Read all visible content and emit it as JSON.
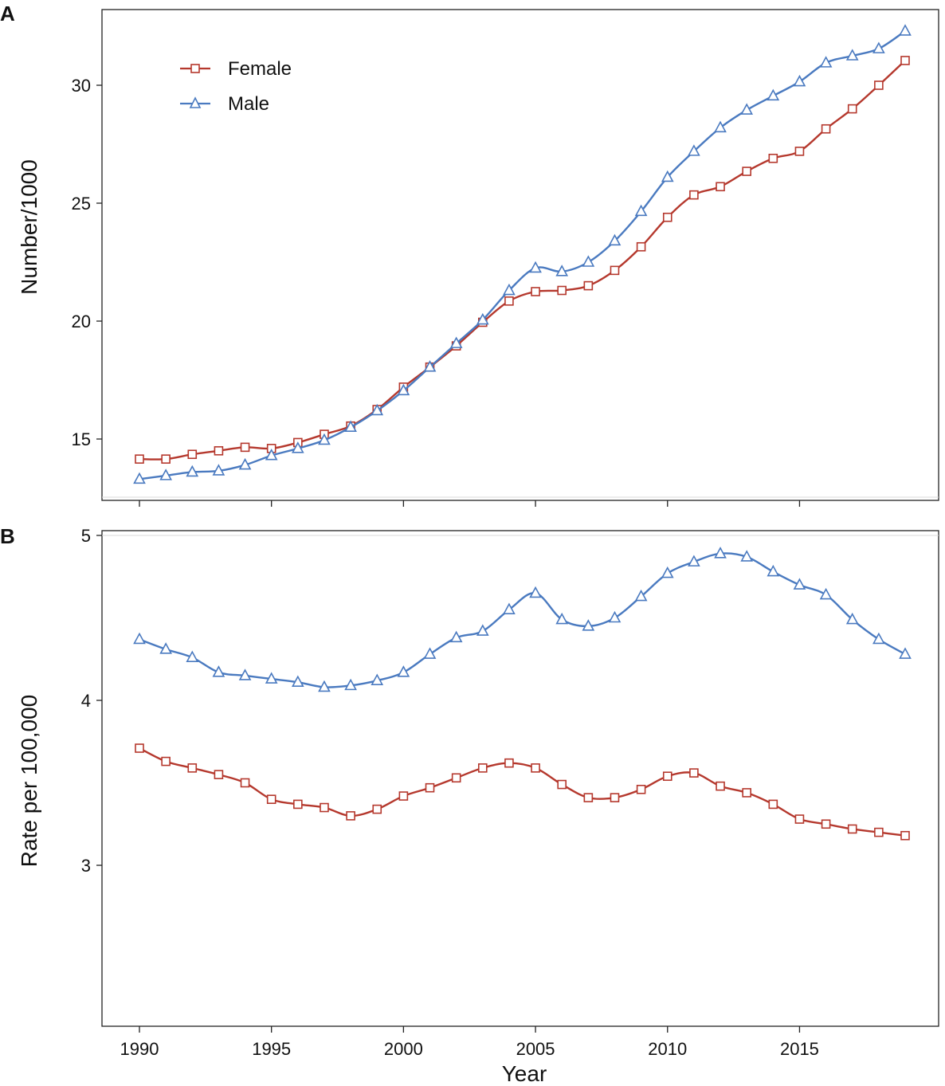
{
  "colors": {
    "female": "#b5382d",
    "male": "#4a7ac0",
    "frame": "#222222"
  },
  "chart_data": [
    {
      "type": "line",
      "panel_label": "A",
      "ylabel": "Number/1000",
      "xlabel": "",
      "xlim": [
        1990,
        2019
      ],
      "ylim": [
        12.5,
        32.8
      ],
      "yticks": [
        15,
        20,
        25,
        30
      ],
      "ytick_labels": [
        "15",
        "20",
        "25",
        "30"
      ],
      "legend": {
        "position": "top-left"
      },
      "x": [
        1990,
        1991,
        1992,
        1993,
        1994,
        1995,
        1996,
        1997,
        1998,
        1999,
        2000,
        2001,
        2002,
        2003,
        2004,
        2005,
        2006,
        2007,
        2008,
        2009,
        2010,
        2011,
        2012,
        2013,
        2014,
        2015,
        2016,
        2017,
        2018,
        2019
      ],
      "series": [
        {
          "name": "Female",
          "marker": "square",
          "color_key": "female",
          "values": [
            14.15,
            14.15,
            14.35,
            14.5,
            14.65,
            14.6,
            14.85,
            15.2,
            15.55,
            16.25,
            17.2,
            18.05,
            18.95,
            19.95,
            20.85,
            21.25,
            21.3,
            21.5,
            22.15,
            23.15,
            24.4,
            25.35,
            25.7,
            26.35,
            26.9,
            27.2,
            28.15,
            29.0,
            30.0,
            31.05
          ]
        },
        {
          "name": "Male",
          "marker": "triangle",
          "color_key": "male",
          "values": [
            13.3,
            13.45,
            13.6,
            13.65,
            13.9,
            14.3,
            14.6,
            14.95,
            15.5,
            16.2,
            17.05,
            18.05,
            19.05,
            20.05,
            21.3,
            22.25,
            22.1,
            22.5,
            23.4,
            24.65,
            26.1,
            27.2,
            28.2,
            28.95,
            29.55,
            30.15,
            30.95,
            31.25,
            31.55,
            32.3
          ]
        }
      ]
    },
    {
      "type": "line",
      "panel_label": "B",
      "ylabel": "Rate per 100,000",
      "xlabel": "Year",
      "xlim": [
        1990,
        2019
      ],
      "ylim": [
        2.0,
        5.0
      ],
      "xticks": [
        1990,
        1995,
        2000,
        2005,
        2010,
        2015
      ],
      "xtick_labels": [
        "1990",
        "1995",
        "2000",
        "2005",
        "2010",
        "2015"
      ],
      "yticks": [
        3,
        4,
        5
      ],
      "ytick_labels": [
        "3",
        "4",
        "5"
      ],
      "x": [
        1990,
        1991,
        1992,
        1993,
        1994,
        1995,
        1996,
        1997,
        1998,
        1999,
        2000,
        2001,
        2002,
        2003,
        2004,
        2005,
        2006,
        2007,
        2008,
        2009,
        2010,
        2011,
        2012,
        2013,
        2014,
        2015,
        2016,
        2017,
        2018,
        2019
      ],
      "series": [
        {
          "name": "Female",
          "marker": "square",
          "color_key": "female",
          "values": [
            3.71,
            3.63,
            3.59,
            3.55,
            3.5,
            3.4,
            3.37,
            3.35,
            3.3,
            3.34,
            3.42,
            3.47,
            3.53,
            3.59,
            3.62,
            3.59,
            3.49,
            3.41,
            3.41,
            3.46,
            3.54,
            3.56,
            3.48,
            3.44,
            3.37,
            3.28,
            3.25,
            3.22,
            3.2,
            3.18
          ]
        },
        {
          "name": "Male",
          "marker": "triangle",
          "color_key": "male",
          "values": [
            4.37,
            4.31,
            4.26,
            4.17,
            4.15,
            4.13,
            4.11,
            4.08,
            4.09,
            4.12,
            4.17,
            4.28,
            4.38,
            4.42,
            4.55,
            4.65,
            4.49,
            4.45,
            4.5,
            4.63,
            4.77,
            4.84,
            4.89,
            4.87,
            4.78,
            4.7,
            4.64,
            4.49,
            4.37,
            4.28
          ]
        }
      ]
    }
  ]
}
